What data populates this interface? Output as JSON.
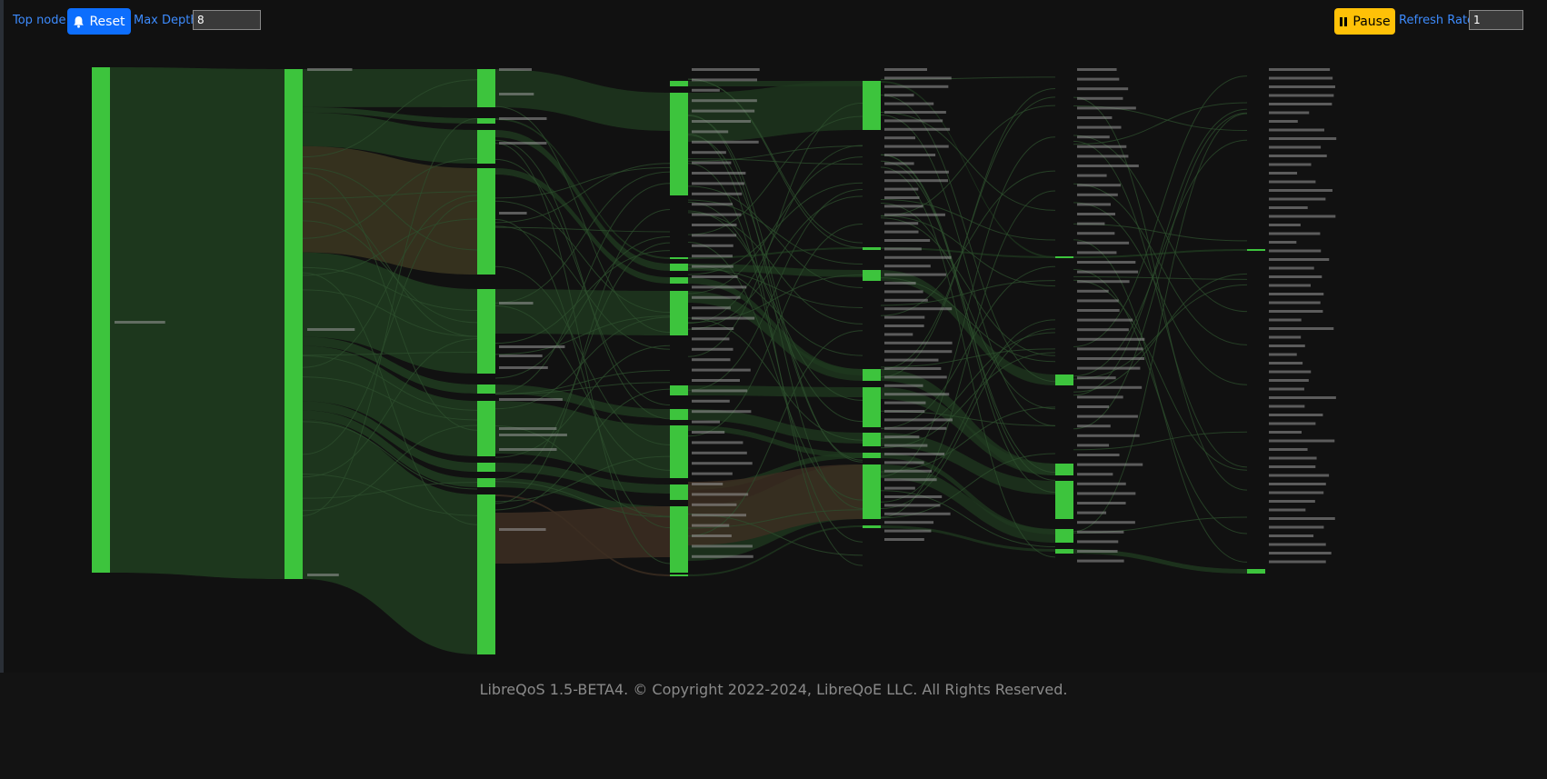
{
  "toolbar": {
    "top_node_label": "Top node::",
    "reset_label": "Reset",
    "reset_icon": "bell-icon",
    "max_depth_label": "Max Depth:",
    "max_depth_value": "8",
    "pause_label": "Pause",
    "pause_icon": "pause-icon",
    "refresh_rate_label": "Refresh Rate:",
    "refresh_rate_value": "1"
  },
  "colors": {
    "node": "#3dc43d",
    "link": "#1f3a1f",
    "link_warm": "#3a3520",
    "link_hot": "#3d2e22",
    "background": "#111111",
    "label": "#9a9a9a",
    "accent_blue": "#0d6efd",
    "accent_yellow": "#ffc107"
  },
  "footer": {
    "text": "LibreQoS 1.5-BETA4. © Copyright 2022-2024, LibreQoE LLC. All Rights Reserved."
  }
}
